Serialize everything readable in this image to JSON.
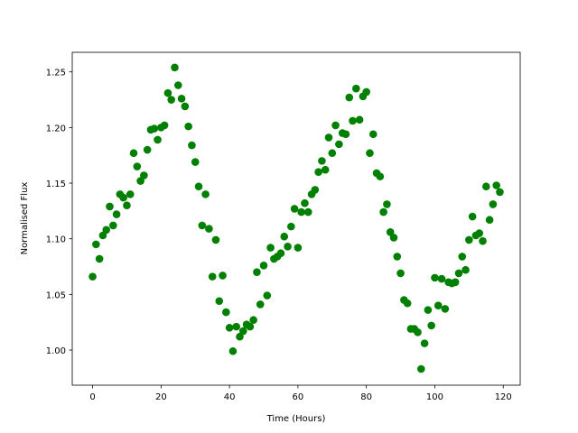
{
  "chart_data": {
    "type": "scatter",
    "x_label": "Time (Hours)",
    "y_label": "Normalised Flux",
    "color": "#008000",
    "x": [
      0,
      1,
      2,
      3,
      4,
      5,
      6,
      7,
      8,
      9,
      10,
      11,
      12,
      13,
      14,
      15,
      16,
      17,
      18,
      19,
      20,
      21,
      22,
      23,
      24,
      25,
      26,
      27,
      28,
      29,
      30,
      31,
      32,
      33,
      34,
      35,
      36,
      37,
      38,
      39,
      40,
      41,
      42,
      43,
      44,
      45,
      46,
      47,
      48,
      49,
      50,
      51,
      52,
      53,
      54,
      55,
      56,
      57,
      58,
      59,
      60,
      61,
      62,
      63,
      64,
      65,
      66,
      67,
      68,
      69,
      70,
      71,
      72,
      73,
      74,
      75,
      76,
      77,
      78,
      79,
      80,
      81,
      82,
      83,
      84,
      85,
      86,
      87,
      88,
      89,
      90,
      91,
      92,
      93,
      94,
      95,
      96,
      97,
      98,
      99,
      100,
      101,
      102,
      103,
      104,
      105,
      106,
      107,
      108,
      109,
      110,
      111,
      112,
      113,
      114,
      115,
      116,
      117,
      118,
      119
    ],
    "values": [
      1.066,
      1.095,
      1.082,
      1.103,
      1.108,
      1.129,
      1.112,
      1.122,
      1.14,
      1.137,
      1.13,
      1.14,
      1.177,
      1.165,
      1.152,
      1.157,
      1.18,
      1.198,
      1.199,
      1.189,
      1.2,
      1.202,
      1.231,
      1.225,
      1.254,
      1.238,
      1.226,
      1.219,
      1.201,
      1.184,
      1.169,
      1.147,
      1.112,
      1.14,
      1.109,
      1.066,
      1.099,
      1.044,
      1.067,
      1.034,
      1.02,
      0.999,
      1.021,
      1.012,
      1.017,
      1.023,
      1.021,
      1.027,
      1.07,
      1.041,
      1.076,
      1.049,
      1.092,
      1.082,
      1.084,
      1.087,
      1.102,
      1.093,
      1.111,
      1.127,
      1.092,
      1.124,
      1.132,
      1.124,
      1.14,
      1.144,
      1.16,
      1.17,
      1.162,
      1.191,
      1.177,
      1.202,
      1.185,
      1.195,
      1.194,
      1.227,
      1.206,
      1.235,
      1.207,
      1.228,
      1.232,
      1.177,
      1.194,
      1.159,
      1.156,
      1.124,
      1.131,
      1.106,
      1.101,
      1.084,
      1.069,
      1.045,
      1.042,
      1.019,
      1.019,
      1.016,
      0.983,
      1.006,
      1.036,
      1.022,
      1.065,
      1.04,
      1.064,
      1.037,
      1.061,
      1.06,
      1.061,
      1.069,
      1.084,
      1.072,
      1.099,
      1.12,
      1.103,
      1.105,
      1.098,
      1.147,
      1.117,
      1.131,
      1.148,
      1.142
    ],
    "xlim": [
      -5.95,
      124.95
    ],
    "xticks": [
      0,
      20,
      40,
      60,
      80,
      100,
      120
    ],
    "ylim": [
      0.9684,
      1.2676
    ],
    "yticks": [
      {
        "value": 1.0,
        "label": "1.00"
      },
      {
        "value": 1.05,
        "label": "1.05"
      },
      {
        "value": 1.1,
        "label": "1.10"
      },
      {
        "value": 1.15,
        "label": "1.15"
      },
      {
        "value": 1.2,
        "label": "1.20"
      },
      {
        "value": 1.25,
        "label": "1.25"
      }
    ]
  }
}
